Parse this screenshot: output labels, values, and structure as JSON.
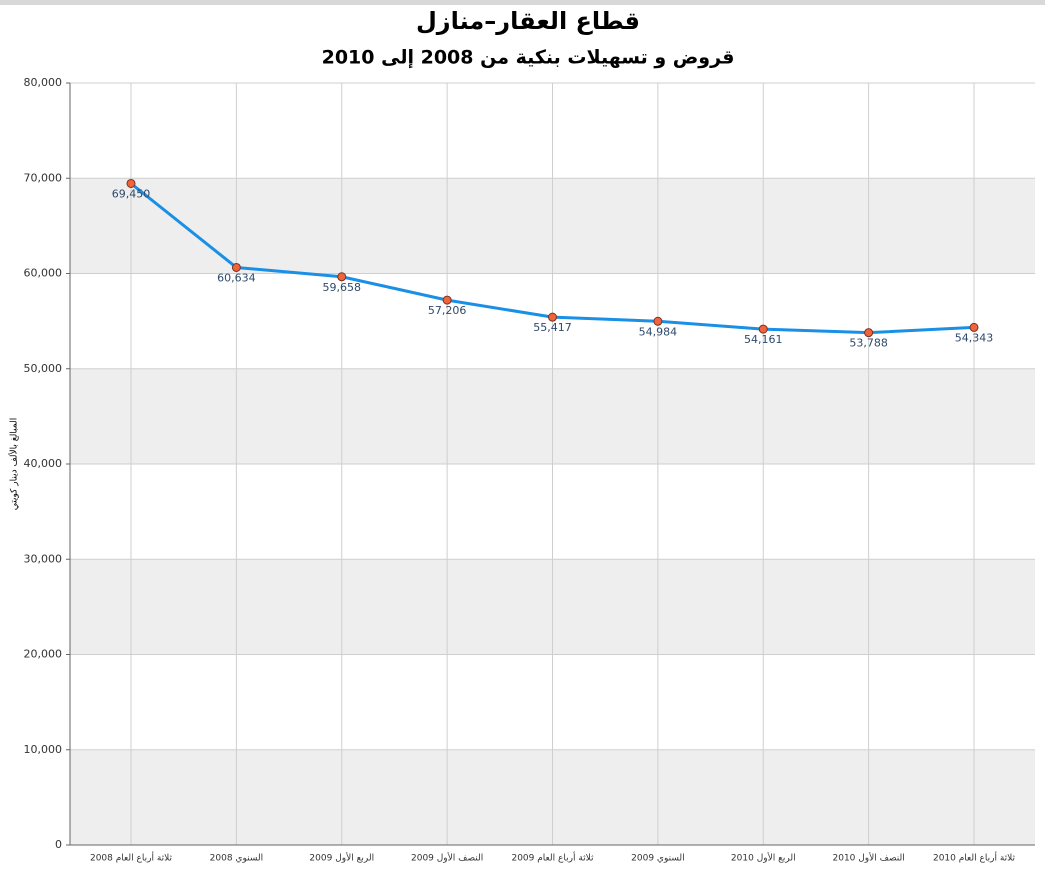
{
  "chart_data": {
    "type": "line",
    "title": "قطاع العقار–منازل",
    "subtitle": "قروض و تسهيلات بنكية من 2008 إلى 2010",
    "y_label": "المبالغ بالألف دينار كويتي",
    "categories": [
      "ثلاثة أرباع العام 2008",
      "السنوي 2008",
      "الربع الأول 2009",
      "النصف الأول 2009",
      "ثلاثة أرباع العام 2009",
      "السنوي 2009",
      "الربع الأول 2010",
      "النصف الأول 2010",
      "ثلاثة أرباع العام 2010"
    ],
    "values": [
      69450,
      60634,
      59658,
      57206,
      55417,
      54984,
      54161,
      53788,
      54343
    ],
    "value_labels": [
      "69,450",
      "60,634",
      "59,658",
      "57,206",
      "55,417",
      "54,984",
      "54,161",
      "53,788",
      "54,343"
    ],
    "color": "#1a8fe6",
    "marker_color": "#f0643c",
    "ylim": [
      0,
      80000
    ],
    "yticks": [
      0,
      {
        "value": 10000,
        "label": "10,000"
      },
      {
        "value": 20000,
        "label": "20,000"
      },
      {
        "value": 30000,
        "label": "30,000"
      },
      {
        "value": 40000,
        "label": "40,000"
      },
      {
        "value": 50000,
        "label": "50,000"
      },
      {
        "value": 60000,
        "label": "60,000"
      },
      {
        "value": 70000,
        "label": "70,000"
      },
      {
        "value": 80000,
        "label": "80,000"
      }
    ],
    "grid": true
  }
}
